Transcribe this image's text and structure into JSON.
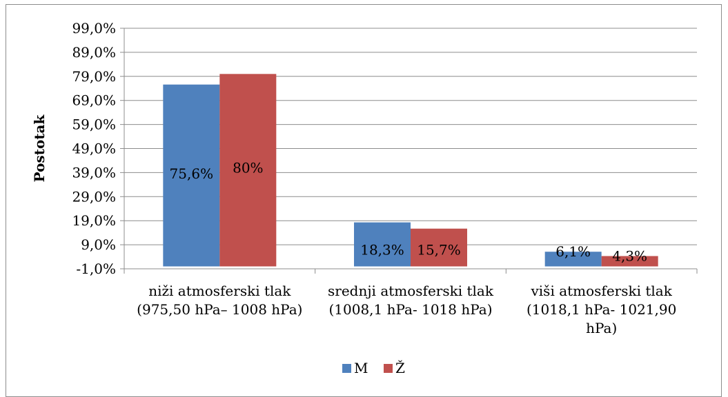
{
  "chart_data": {
    "type": "bar",
    "ylabel": "Postotak",
    "ylim": [
      -1.0,
      99.0
    ],
    "yticks": [
      "-1,0%",
      "9,0%",
      "19,0%",
      "29,0%",
      "39,0%",
      "49,0%",
      "59,0%",
      "69,0%",
      "79,0%",
      "89,0%",
      "99,0%"
    ],
    "categories": [
      [
        "niži atmosferski tlak",
        "(975,50  hPa– 1008 hPa)"
      ],
      [
        "srednji atmosferski tlak",
        "(1008,1 hPa- 1018 hPa)"
      ],
      [
        "viši atmosferski tlak",
        "(1018,1 hPa- 1021,90",
        "hPa)"
      ]
    ],
    "series": [
      {
        "name": "M",
        "color": "#4F81BD",
        "values": [
          75.6,
          18.3,
          6.1
        ],
        "labels": [
          "75,6%",
          "18,3%",
          "6,1%"
        ]
      },
      {
        "name": "Ž",
        "color": "#C0504D",
        "values": [
          80.0,
          15.7,
          4.3
        ],
        "labels": [
          "80%",
          "15,7%",
          "4,3%"
        ]
      }
    ],
    "grid": true,
    "legend": "bottom"
  }
}
